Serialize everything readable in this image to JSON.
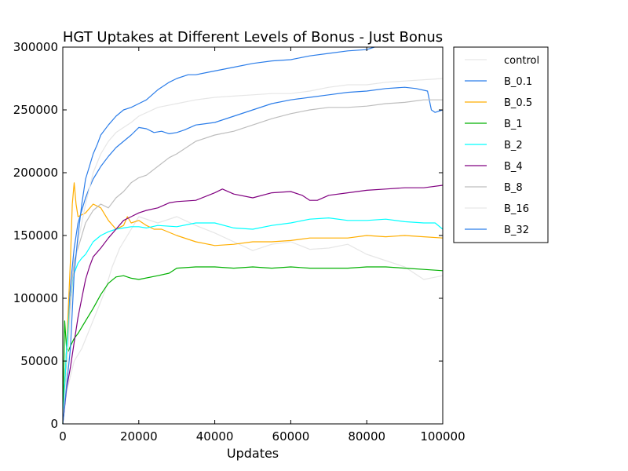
{
  "chart_data": {
    "type": "line",
    "title": "HGT Uptakes at Different Levels of Bonus - Just Bonus",
    "xlabel": "Updates",
    "ylabel": "",
    "xlim": [
      0,
      100000
    ],
    "ylim": [
      0,
      300000
    ],
    "x_ticks": [
      0,
      20000,
      40000,
      60000,
      80000,
      100000
    ],
    "x_tick_labels": [
      "0",
      "20000",
      "40000",
      "60000",
      "80000",
      "100000"
    ],
    "y_ticks": [
      0,
      50000,
      100000,
      150000,
      200000,
      250000,
      300000
    ],
    "y_tick_labels": [
      "0",
      "50000",
      "100000",
      "150000",
      "200000",
      "250000",
      "300000"
    ],
    "grid": false,
    "legend_position": "outside-right",
    "series": [
      {
        "name": "control",
        "color": "#e6e6e6",
        "x": [
          0,
          1000,
          2000,
          3000,
          5000,
          7000,
          9000,
          11000,
          13000,
          15000,
          17000,
          20000,
          25000,
          30000,
          35000,
          40000,
          45000,
          50000,
          55000,
          60000,
          65000,
          70000,
          75000,
          80000,
          85000,
          90000,
          95000,
          100000
        ],
        "y": [
          0,
          25000,
          38000,
          50000,
          60000,
          75000,
          90000,
          105000,
          125000,
          140000,
          150000,
          165000,
          160000,
          165000,
          158000,
          152000,
          145000,
          138000,
          143000,
          145000,
          139000,
          140000,
          143000,
          135000,
          130000,
          125000,
          115000,
          118000
        ]
      },
      {
        "name": "B_0.1",
        "color": "#2b7de9",
        "x": [
          0,
          1000,
          2000,
          3000,
          4000,
          5000,
          6000,
          7000,
          8000,
          9000,
          10000,
          12000,
          14000,
          16000,
          18000,
          20000,
          22000,
          24000,
          26000,
          28000,
          30000,
          32000,
          35000,
          40000,
          45000,
          50000,
          55000,
          60000,
          65000,
          70000,
          75000,
          80000,
          85000,
          90000,
          93000,
          96000,
          97000,
          98000,
          100000
        ],
        "y": [
          0,
          60000,
          110000,
          140000,
          160000,
          170000,
          180000,
          188000,
          195000,
          200000,
          205000,
          213000,
          220000,
          225000,
          230000,
          236000,
          235000,
          232000,
          233000,
          231000,
          232000,
          234000,
          238000,
          240000,
          245000,
          250000,
          255000,
          258000,
          260000,
          262000,
          264000,
          265000,
          267000,
          268000,
          267000,
          265000,
          250000,
          248000,
          250000
        ]
      },
      {
        "name": "B_0.5",
        "color": "#ffae00",
        "x": [
          0,
          1000,
          2000,
          2500,
          3000,
          3500,
          4000,
          6000,
          8000,
          10000,
          12000,
          14000,
          16000,
          17000,
          18000,
          20000,
          22000,
          24000,
          26000,
          30000,
          35000,
          40000,
          45000,
          50000,
          55000,
          60000,
          65000,
          70000,
          75000,
          80000,
          85000,
          90000,
          95000,
          100000
        ],
        "y": [
          0,
          60000,
          130000,
          175000,
          192000,
          175000,
          165000,
          168000,
          175000,
          172000,
          162000,
          155000,
          158000,
          165000,
          160000,
          162000,
          158000,
          155000,
          155000,
          150000,
          145000,
          142000,
          143000,
          145000,
          145000,
          146000,
          148000,
          148000,
          148000,
          150000,
          149000,
          150000,
          149000,
          148000
        ]
      },
      {
        "name": "B_1",
        "color": "#00b000",
        "x": [
          0,
          500,
          1000,
          1500,
          2000,
          3000,
          4000,
          6000,
          8000,
          10000,
          12000,
          14000,
          16000,
          18000,
          20000,
          25000,
          28000,
          30000,
          35000,
          40000,
          45000,
          50000,
          55000,
          60000,
          65000,
          70000,
          75000,
          80000,
          85000,
          90000,
          95000,
          100000
        ],
        "y": [
          0,
          82000,
          60000,
          58000,
          62000,
          68000,
          72000,
          82000,
          92000,
          103000,
          112000,
          117000,
          118000,
          116000,
          115000,
          118000,
          120000,
          124000,
          125000,
          125000,
          124000,
          125000,
          124000,
          125000,
          124000,
          124000,
          124000,
          125000,
          125000,
          124000,
          123000,
          122000
        ]
      },
      {
        "name": "B_2",
        "color": "#00ffff",
        "x": [
          0,
          1000,
          2000,
          3000,
          4000,
          5000,
          6000,
          8000,
          10000,
          12000,
          14000,
          16000,
          18000,
          20000,
          22000,
          25000,
          30000,
          35000,
          40000,
          45000,
          50000,
          55000,
          60000,
          65000,
          70000,
          75000,
          80000,
          85000,
          90000,
          95000,
          98000,
          100000
        ],
        "y": [
          0,
          60000,
          100000,
          120000,
          128000,
          132000,
          135000,
          145000,
          150000,
          153000,
          155000,
          156000,
          157000,
          157000,
          156000,
          158000,
          157000,
          160000,
          160000,
          156000,
          155000,
          158000,
          160000,
          163000,
          164000,
          162000,
          162000,
          163000,
          161000,
          160000,
          160000,
          155000
        ]
      },
      {
        "name": "B_4",
        "color": "#800080",
        "x": [
          0,
          1000,
          2000,
          3000,
          4000,
          5000,
          6000,
          7000,
          8000,
          10000,
          12000,
          14000,
          16000,
          18000,
          20000,
          22000,
          25000,
          28000,
          30000,
          35000,
          40000,
          42000,
          45000,
          50000,
          55000,
          60000,
          63000,
          65000,
          67000,
          70000,
          75000,
          80000,
          85000,
          90000,
          95000,
          100000
        ],
        "y": [
          0,
          28000,
          45000,
          65000,
          85000,
          100000,
          115000,
          125000,
          133000,
          140000,
          148000,
          155000,
          162000,
          165000,
          168000,
          170000,
          172000,
          176000,
          177000,
          178000,
          184000,
          187000,
          183000,
          180000,
          184000,
          185000,
          182000,
          178000,
          178000,
          182000,
          184000,
          186000,
          187000,
          188000,
          188000,
          190000
        ]
      },
      {
        "name": "B_8",
        "color": "#bdbdbd",
        "x": [
          0,
          1000,
          2000,
          3000,
          4000,
          6000,
          8000,
          10000,
          12000,
          14000,
          16000,
          18000,
          20000,
          22000,
          25000,
          28000,
          30000,
          35000,
          40000,
          45000,
          50000,
          55000,
          60000,
          65000,
          70000,
          75000,
          80000,
          85000,
          90000,
          95000,
          100000
        ],
        "y": [
          0,
          40000,
          100000,
          130000,
          140000,
          160000,
          170000,
          175000,
          172000,
          180000,
          185000,
          192000,
          196000,
          198000,
          205000,
          212000,
          215000,
          225000,
          230000,
          233000,
          238000,
          243000,
          247000,
          250000,
          252000,
          252000,
          253000,
          255000,
          256000,
          258000,
          258000
        ]
      },
      {
        "name": "B_16",
        "color": "#e6e6e6",
        "x": [
          0,
          1000,
          2000,
          3000,
          4000,
          6000,
          8000,
          10000,
          12000,
          14000,
          16000,
          18000,
          20000,
          25000,
          30000,
          35000,
          40000,
          45000,
          50000,
          55000,
          60000,
          65000,
          70000,
          75000,
          80000,
          85000,
          90000,
          95000,
          100000
        ],
        "y": [
          0,
          40000,
          90000,
          120000,
          145000,
          175000,
          200000,
          215000,
          225000,
          232000,
          236000,
          240000,
          245000,
          252000,
          255000,
          258000,
          260000,
          261000,
          262000,
          263000,
          263000,
          265000,
          268000,
          270000,
          270000,
          272000,
          273000,
          274000,
          275000
        ]
      },
      {
        "name": "B_32",
        "color": "#2b7de9",
        "x": [
          0,
          1000,
          2000,
          3000,
          4000,
          5000,
          6000,
          7000,
          8000,
          9000,
          10000,
          12000,
          14000,
          16000,
          18000,
          20000,
          22000,
          25000,
          28000,
          30000,
          33000,
          35000,
          40000,
          45000,
          50000,
          55000,
          60000,
          65000,
          70000,
          75000,
          80000,
          82000
        ],
        "y": [
          0,
          30000,
          60000,
          120000,
          150000,
          175000,
          195000,
          205000,
          215000,
          222000,
          230000,
          238000,
          245000,
          250000,
          252000,
          255000,
          258000,
          266000,
          272000,
          275000,
          278000,
          278000,
          281000,
          284000,
          287000,
          289000,
          290000,
          293000,
          295000,
          297000,
          298000,
          300000
        ]
      }
    ]
  }
}
